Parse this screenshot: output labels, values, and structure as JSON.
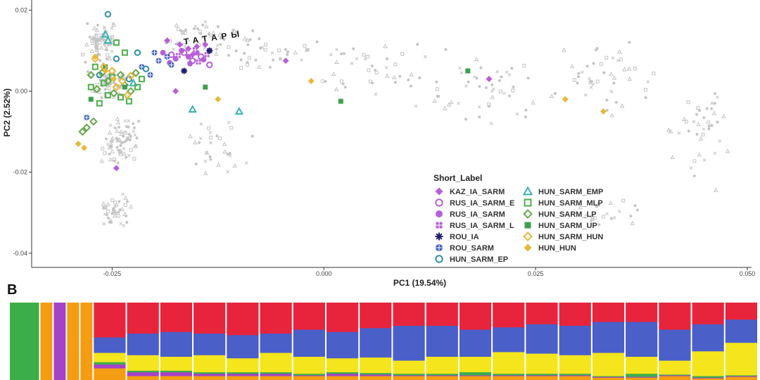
{
  "chart_data": [
    {
      "type": "scatter",
      "title": "",
      "xlabel": "PC1 (19.54%)",
      "ylabel": "PC2 (2.52%)",
      "xlim": [
        -0.0345,
        0.0505
      ],
      "ylim": [
        -0.0435,
        0.0225
      ],
      "x_ticks": [
        -0.025,
        0.0,
        0.025,
        0.05
      ],
      "x_tick_labels": [
        "-0.025",
        "0.000",
        "0.025",
        "0.050"
      ],
      "y_ticks": [
        0.02,
        0.0,
        -0.02,
        -0.04
      ],
      "y_tick_labels": [
        "0.02",
        "0.00",
        "-0.02",
        "-0.04"
      ],
      "annotation": {
        "text": "ТАТАРЫ",
        "x": -0.0165,
        "y": 0.0115
      },
      "legend": {
        "title": "Short_Label",
        "position": "bottom-right",
        "entries": [
          {
            "name": "KAZ_IA_SARM",
            "shape": "diamond-filled",
            "color": "#b75fd6"
          },
          {
            "name": "RUS_IA_SARM_E",
            "shape": "circle-open",
            "color": "#b75fd6"
          },
          {
            "name": "RUS_IA_SARM",
            "shape": "circle-filled",
            "color": "#b75fd6"
          },
          {
            "name": "RUS_IA_SARM_L",
            "shape": "square-cross",
            "color": "#b75fd6"
          },
          {
            "name": "ROU_IA",
            "shape": "asterisk",
            "color": "#1f1f6b"
          },
          {
            "name": "ROU_SARM",
            "shape": "circle-cross",
            "color": "#3f5fbf"
          },
          {
            "name": "HUN_SARM_EP",
            "shape": "circle-open",
            "color": "#2f8faa"
          },
          {
            "name": "HUN_SARM_EMP",
            "shape": "triangle-open",
            "color": "#3bb2b2"
          },
          {
            "name": "HUN_SARM_MLP",
            "shape": "square-open",
            "color": "#4cae4c"
          },
          {
            "name": "HUN_SARM_LP",
            "shape": "diamond-open",
            "color": "#6aa84f"
          },
          {
            "name": "HUN_SARM_UP",
            "shape": "square-filled",
            "color": "#3e9f4f"
          },
          {
            "name": "HUN_SARM_HUN",
            "shape": "diamond-open",
            "color": "#e6b83a"
          },
          {
            "name": "HUN_HUN",
            "shape": "diamond-filled",
            "color": "#e6b83a"
          }
        ]
      },
      "series": [
        {
          "name": "KAZ_IA_SARM",
          "points": [
            [
              -0.0185,
              0.0125
            ],
            [
              -0.017,
              0.0115
            ],
            [
              -0.016,
              0.0105
            ],
            [
              -0.015,
              0.011
            ],
            [
              -0.014,
              0.0115
            ],
            [
              -0.0175,
              -0.0
            ],
            [
              -0.0245,
              -0.019
            ],
            [
              -0.0045,
              0.0075
            ],
            [
              0.0195,
              0.003
            ],
            [
              -0.0155,
              0.009
            ]
          ]
        },
        {
          "name": "RUS_IA_SARM_E",
          "points": [
            [
              -0.018,
              0.009
            ],
            [
              -0.0165,
              0.0095
            ],
            [
              -0.0155,
              0.0075
            ],
            [
              -0.0145,
              0.0085
            ],
            [
              -0.0135,
              0.0065
            ]
          ]
        },
        {
          "name": "RUS_IA_SARM",
          "points": [
            [
              -0.019,
              0.0095
            ],
            [
              -0.0175,
              0.008
            ],
            [
              -0.0168,
              0.01
            ],
            [
              -0.016,
              0.0085
            ],
            [
              -0.015,
              0.0095
            ],
            [
              -0.0142,
              0.0078
            ],
            [
              -0.0135,
              0.01
            ],
            [
              -0.0182,
              0.007
            ],
            [
              -0.0158,
              0.0068
            ]
          ]
        },
        {
          "name": "RUS_IA_SARM_L",
          "points": [
            [
              -0.0172,
              0.0088
            ],
            [
              -0.0152,
              0.0102
            ],
            [
              -0.0148,
              0.0072
            ],
            [
              -0.0138,
              0.009
            ]
          ]
        },
        {
          "name": "ROU_IA",
          "points": [
            [
              -0.0135,
              0.01
            ],
            [
              -0.0165,
              0.005
            ]
          ]
        },
        {
          "name": "ROU_SARM",
          "points": [
            [
              -0.02,
              0.0095
            ],
            [
              -0.0195,
              0.0075
            ],
            [
              -0.0185,
              0.0085
            ],
            [
              -0.018,
              0.0065
            ],
            [
              -0.0215,
              0.006
            ],
            [
              -0.0205,
              0.004
            ],
            [
              -0.028,
              -0.0065
            ]
          ]
        },
        {
          "name": "HUN_SARM_EP",
          "points": [
            [
              -0.0255,
              0.019
            ],
            [
              -0.022,
              0.0095
            ],
            [
              -0.0245,
              0.008
            ],
            [
              -0.0265,
              0.004
            ],
            [
              -0.021,
              0.0055
            ],
            [
              -0.023,
              0.003
            ]
          ]
        },
        {
          "name": "HUN_SARM_EMP",
          "points": [
            [
              -0.0258,
              0.014
            ],
            [
              -0.0255,
              0.0125
            ],
            [
              -0.0155,
              -0.0045
            ],
            [
              -0.01,
              -0.005
            ],
            [
              -0.0225,
              0.002
            ]
          ]
        },
        {
          "name": "HUN_SARM_MLP",
          "points": [
            [
              -0.0245,
              0.012
            ],
            [
              -0.0235,
              0.0095
            ],
            [
              -0.027,
              0.006
            ],
            [
              -0.026,
              0.002
            ],
            [
              -0.0255,
              -0.001
            ],
            [
              -0.025,
              0.0035
            ],
            [
              -0.024,
              -0.0015
            ],
            [
              -0.023,
              -0.0025
            ],
            [
              -0.022,
              0.001
            ],
            [
              -0.0275,
              0.001
            ],
            [
              -0.0265,
              -0.003
            ],
            [
              -0.0215,
              0.003
            ]
          ]
        },
        {
          "name": "HUN_SARM_LP",
          "points": [
            [
              -0.0275,
              0.004
            ],
            [
              -0.0268,
              0.0005
            ],
            [
              -0.0262,
              0.0045
            ],
            [
              -0.0255,
              0.0025
            ],
            [
              -0.0248,
              -0.0005
            ],
            [
              -0.024,
              0.004
            ],
            [
              -0.0235,
              0.0015
            ],
            [
              -0.0228,
              0.0
            ],
            [
              -0.028,
              -0.009
            ],
            [
              -0.0272,
              -0.0075
            ],
            [
              -0.0285,
              -0.01
            ],
            [
              -0.0222,
              0.0045
            ]
          ]
        },
        {
          "name": "HUN_SARM_UP",
          "points": [
            [
              -0.014,
              0.001
            ],
            [
              0.017,
              0.005
            ],
            [
              0.002,
              -0.0025
            ],
            [
              -0.0275,
              -0.002
            ],
            [
              -0.0258,
              0.006
            ],
            [
              -0.0235,
              0.001
            ]
          ]
        },
        {
          "name": "HUN_SARM_HUN",
          "points": [
            [
              -0.027,
              0.008
            ],
            [
              -0.026,
              0.006
            ],
            [
              -0.025,
              0.005
            ],
            [
              -0.0238,
              0.0025
            ],
            [
              -0.0228,
              0.0038
            ],
            [
              -0.0245,
              0.001
            ],
            [
              -0.0232,
              -0.001
            ]
          ]
        },
        {
          "name": "HUN_HUN",
          "points": [
            [
              -0.029,
              -0.013
            ],
            [
              -0.0283,
              -0.014
            ],
            [
              -0.027,
              0.0085
            ],
            [
              -0.0258,
              0.005
            ],
            [
              -0.0248,
              0.003
            ],
            [
              -0.0125,
              -0.002
            ],
            [
              -0.0015,
              0.0025
            ],
            [
              0.0285,
              -0.002
            ],
            [
              0.033,
              -0.005
            ]
          ]
        }
      ]
    },
    {
      "type": "bar",
      "title": "",
      "panel_label": "B",
      "stacked": true,
      "series_colors": [
        "#e8243c",
        "#4b5fc9",
        "#f5e51d",
        "#3cae49",
        "#a543c6",
        "#f49d12"
      ],
      "groups": [
        {
          "count": 1,
          "profile": [
            0,
            0,
            0,
            1,
            0,
            0
          ]
        },
        {
          "count": 1,
          "profile": [
            0,
            0,
            0,
            0,
            0,
            1
          ]
        },
        {
          "count": 1,
          "profile": [
            0,
            0,
            0,
            0,
            1,
            0
          ]
        },
        {
          "count": 1,
          "profile": [
            0,
            0,
            0,
            0,
            0,
            1
          ]
        },
        {
          "count": 1,
          "profile": [
            0,
            0,
            0,
            0,
            0,
            1
          ]
        },
        {
          "count": 1,
          "profile": [
            0.45,
            0.2,
            0.12,
            0.03,
            0.05,
            0.15
          ]
        },
        {
          "count": 1,
          "profile": [
            0.4,
            0.28,
            0.2,
            0.02,
            0.05,
            0.05
          ]
        },
        {
          "count": 1,
          "profile": [
            0.38,
            0.32,
            0.18,
            0.02,
            0.05,
            0.05
          ]
        },
        {
          "count": 1,
          "profile": [
            0.4,
            0.28,
            0.22,
            0.02,
            0.03,
            0.05
          ]
        },
        {
          "count": 1,
          "profile": [
            0.42,
            0.3,
            0.18,
            0.02,
            0.03,
            0.05
          ]
        },
        {
          "count": 1,
          "profile": [
            0.4,
            0.25,
            0.25,
            0.02,
            0.03,
            0.05
          ]
        },
        {
          "count": 1,
          "profile": [
            0.35,
            0.35,
            0.22,
            0.02,
            0.01,
            0.05
          ]
        },
        {
          "count": 1,
          "profile": [
            0.38,
            0.34,
            0.18,
            0.02,
            0.03,
            0.05
          ]
        },
        {
          "count": 1,
          "profile": [
            0.33,
            0.38,
            0.2,
            0.02,
            0.02,
            0.05
          ]
        },
        {
          "count": 1,
          "profile": [
            0.3,
            0.45,
            0.17,
            0.02,
            0.01,
            0.05
          ]
        },
        {
          "count": 1,
          "profile": [
            0.3,
            0.4,
            0.22,
            0.02,
            0.01,
            0.05
          ]
        },
        {
          "count": 1,
          "profile": [
            0.35,
            0.35,
            0.2,
            0.04,
            0.01,
            0.05
          ]
        },
        {
          "count": 1,
          "profile": [
            0.32,
            0.32,
            0.28,
            0.02,
            0.01,
            0.05
          ]
        },
        {
          "count": 1,
          "profile": [
            0.28,
            0.38,
            0.26,
            0.02,
            0.01,
            0.05
          ]
        },
        {
          "count": 1,
          "profile": [
            0.3,
            0.38,
            0.24,
            0.02,
            0.01,
            0.05
          ]
        },
        {
          "count": 1,
          "profile": [
            0.25,
            0.4,
            0.3,
            0.01,
            0.01,
            0.03
          ]
        },
        {
          "count": 1,
          "profile": [
            0.25,
            0.45,
            0.22,
            0.04,
            0.01,
            0.03
          ]
        },
        {
          "count": 1,
          "profile": [
            0.35,
            0.4,
            0.18,
            0.01,
            0.01,
            0.05
          ]
        },
        {
          "count": 1,
          "profile": [
            0.28,
            0.35,
            0.32,
            0.02,
            0.01,
            0.02
          ]
        },
        {
          "count": 1,
          "profile": [
            0.22,
            0.3,
            0.42,
            0.01,
            0.01,
            0.04
          ]
        }
      ]
    }
  ]
}
